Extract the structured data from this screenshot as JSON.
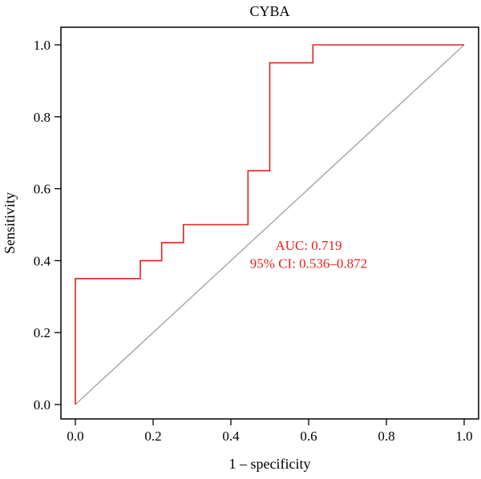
{
  "chart_data": {
    "type": "line",
    "title": "CYBA",
    "xlabel": "1 – specificity",
    "ylabel": "Sensitivity",
    "xlim": [
      0.0,
      1.0
    ],
    "ylim": [
      0.0,
      1.0
    ],
    "x_ticks": [
      "0.0",
      "0.2",
      "0.4",
      "0.6",
      "0.8",
      "1.0"
    ],
    "y_ticks": [
      "0.0",
      "0.2",
      "0.4",
      "0.6",
      "0.8",
      "1.0"
    ],
    "grid": false,
    "series": [
      {
        "name": "",
        "color": "#e3221a",
        "style": "step",
        "x": [
          0.0,
          0.0,
          0.167,
          0.167,
          0.222,
          0.222,
          0.278,
          0.278,
          0.444,
          0.444,
          0.5,
          0.5,
          0.611,
          0.611,
          1.0
        ],
        "y": [
          0.0,
          0.35,
          0.35,
          0.4,
          0.4,
          0.45,
          0.45,
          0.5,
          0.5,
          0.65,
          0.65,
          0.95,
          0.95,
          1.0,
          1.0
        ]
      },
      {
        "name": "",
        "color": "#aaaaaa",
        "style": "line",
        "x": [
          0.0,
          1.0
        ],
        "y": [
          0.0,
          1.0
        ]
      }
    ],
    "annotations": [
      {
        "text": "AUC: 0.719",
        "x": 0.6,
        "y": 0.43,
        "color": "#e3221a"
      },
      {
        "text": "95% CI: 0.536–0.872",
        "x": 0.6,
        "y": 0.38,
        "color": "#e3221a"
      }
    ]
  }
}
